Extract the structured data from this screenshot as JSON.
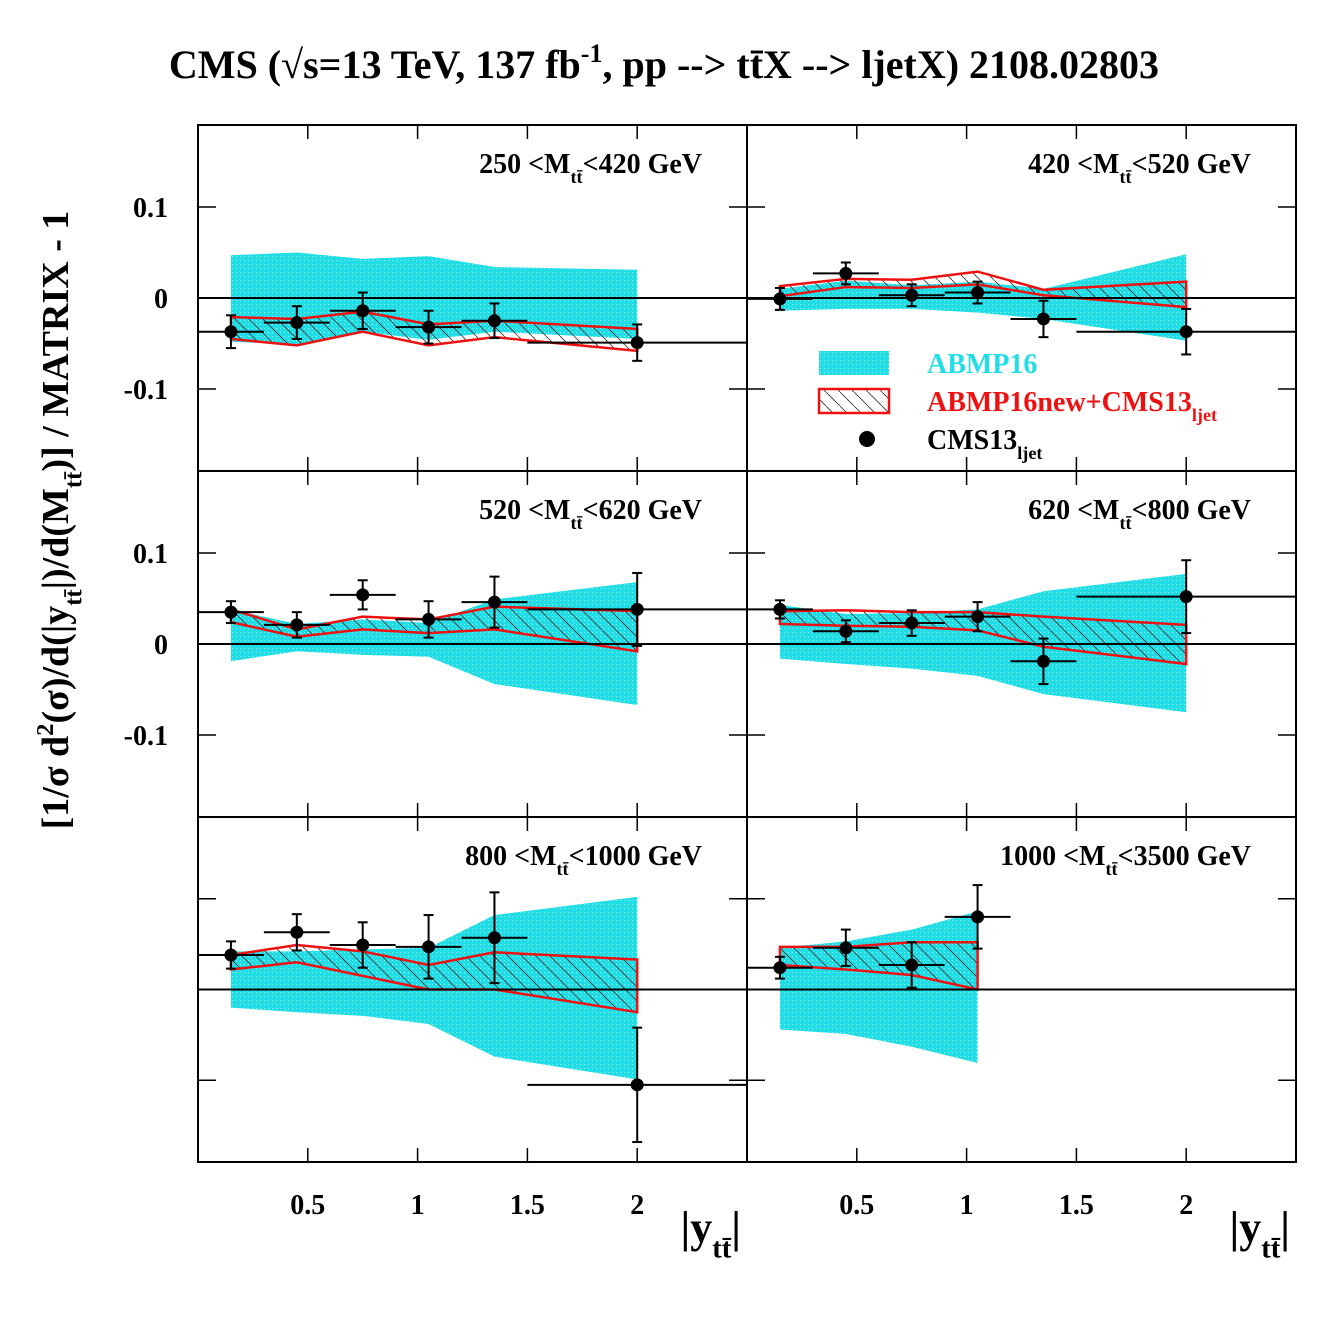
{
  "title": [
    "CMS (√s=13 TeV, 137 fb",
    {
      "sup": "-1"
    },
    ", pp --> tt̄X --> ljetX) 2108.02803"
  ],
  "y_label": [
    "[1/σ d",
    {
      "sup": "2"
    },
    "(σ)/d(|y",
    {
      "sub": "tt̄"
    },
    "|)/d(M",
    {
      "sub": "tt̄"
    },
    ")] / MATRIX - 1"
  ],
  "chart_data": [
    {
      "type": "band-points",
      "label": [
        "250 <M",
        {
          "sub": "tt̄"
        },
        "<420 GeV"
      ],
      "xlim": [
        0,
        2.5
      ],
      "ylim": [
        -0.19,
        0.19
      ],
      "xticks": [
        0.5,
        1,
        1.5,
        2
      ],
      "yticks": [
        -0.1,
        0,
        0.1
      ],
      "show_xtick_labels": false,
      "show_ytick_labels": true,
      "reference_line": 0,
      "x": [
        0.15,
        0.45,
        0.75,
        1.05,
        1.35,
        2.0
      ],
      "xerr": [
        0.15,
        0.15,
        0.15,
        0.15,
        0.15,
        0.5
      ],
      "values": [
        -0.037,
        -0.027,
        -0.014,
        -0.032,
        -0.025,
        -0.049
      ],
      "yerr": [
        0.018,
        0.018,
        0.02,
        0.018,
        0.019,
        0.02
      ],
      "bands": [
        {
          "upper": [
            0.047,
            0.05,
            0.043,
            0.046,
            0.034,
            0.031
          ],
          "lower": [
            -0.048,
            -0.051,
            -0.037,
            -0.046,
            -0.037,
            -0.045
          ]
        },
        {
          "upper": [
            -0.021,
            -0.023,
            -0.015,
            -0.029,
            -0.025,
            -0.034
          ],
          "lower": [
            -0.045,
            -0.052,
            -0.037,
            -0.052,
            -0.043,
            -0.058
          ]
        }
      ]
    },
    {
      "type": "band-points",
      "label": [
        "420 <M",
        {
          "sub": "tt̄"
        },
        "<520 GeV"
      ],
      "xlim": [
        0,
        2.5
      ],
      "ylim": [
        -0.19,
        0.19
      ],
      "xticks": [
        0.5,
        1,
        1.5,
        2
      ],
      "yticks": [
        -0.1,
        0,
        0.1
      ],
      "show_xtick_labels": false,
      "show_ytick_labels": false,
      "reference_line": 0,
      "x": [
        0.15,
        0.45,
        0.75,
        1.05,
        1.35,
        2.0
      ],
      "xerr": [
        0.15,
        0.15,
        0.15,
        0.15,
        0.15,
        0.5
      ],
      "values": [
        -0.001,
        0.027,
        0.003,
        0.006,
        -0.023,
        -0.037
      ],
      "yerr": [
        0.012,
        0.012,
        0.012,
        0.012,
        0.02,
        0.025
      ],
      "bands": [
        {
          "upper": [
            0.01,
            0.019,
            0.014,
            0.018,
            0.01,
            0.048
          ],
          "lower": [
            -0.014,
            -0.012,
            -0.012,
            -0.016,
            -0.023,
            -0.047
          ]
        },
        {
          "upper": [
            0.013,
            0.021,
            0.02,
            0.029,
            0.009,
            0.018
          ],
          "lower": [
            0.002,
            0.012,
            0.011,
            0.015,
            0.003,
            -0.01
          ]
        }
      ],
      "legend": {
        "entries": [
          {
            "name": [
              "ABMP16"
            ],
            "color": "#22dde6"
          },
          {
            "name": [
              "ABMP16new+CMS13",
              {
                "sub": "ljet"
              }
            ],
            "color": "#ee1111"
          },
          {
            "name": [
              "CMS13",
              {
                "sub": "ljet"
              }
            ],
            "color": "#000000"
          }
        ]
      }
    },
    {
      "type": "band-points",
      "label": [
        "520 <M",
        {
          "sub": "tt̄"
        },
        "<620 GeV"
      ],
      "xlim": [
        0,
        2.5
      ],
      "ylim": [
        -0.19,
        0.19
      ],
      "xticks": [
        0.5,
        1,
        1.5,
        2
      ],
      "yticks": [
        -0.1,
        0,
        0.1
      ],
      "show_xtick_labels": false,
      "show_ytick_labels": true,
      "reference_line": 0,
      "x": [
        0.15,
        0.45,
        0.75,
        1.05,
        1.35,
        2.0
      ],
      "xerr": [
        0.15,
        0.15,
        0.15,
        0.15,
        0.15,
        0.5
      ],
      "values": [
        0.035,
        0.021,
        0.054,
        0.027,
        0.046,
        0.038
      ],
      "yerr": [
        0.012,
        0.014,
        0.016,
        0.02,
        0.028,
        0.04
      ],
      "bands": [
        {
          "upper": [
            0.038,
            0.022,
            0.027,
            0.023,
            0.049,
            0.068
          ],
          "lower": [
            -0.019,
            -0.008,
            -0.012,
            -0.014,
            -0.044,
            -0.067
          ]
        },
        {
          "upper": [
            0.038,
            0.016,
            0.03,
            0.027,
            0.041,
            0.036
          ],
          "lower": [
            0.024,
            0.008,
            0.016,
            0.012,
            0.016,
            -0.008
          ]
        }
      ]
    },
    {
      "type": "band-points",
      "label": [
        "620 <M",
        {
          "sub": "tt̄"
        },
        "<800 GeV"
      ],
      "xlim": [
        0,
        2.5
      ],
      "ylim": [
        -0.19,
        0.19
      ],
      "xticks": [
        0.5,
        1,
        1.5,
        2
      ],
      "yticks": [
        -0.1,
        0,
        0.1
      ],
      "show_xtick_labels": false,
      "show_ytick_labels": false,
      "reference_line": 0,
      "x": [
        0.15,
        0.45,
        0.75,
        1.05,
        1.35,
        2.0
      ],
      "xerr": [
        0.15,
        0.15,
        0.15,
        0.15,
        0.15,
        0.5
      ],
      "values": [
        0.038,
        0.014,
        0.023,
        0.03,
        -0.019,
        0.052
      ],
      "yerr": [
        0.01,
        0.012,
        0.014,
        0.016,
        0.025,
        0.04
      ],
      "bands": [
        {
          "upper": [
            0.043,
            0.033,
            0.034,
            0.038,
            0.058,
            0.077
          ],
          "lower": [
            -0.016,
            -0.022,
            -0.027,
            -0.035,
            -0.055,
            -0.075
          ]
        },
        {
          "upper": [
            0.036,
            0.037,
            0.035,
            0.035,
            0.03,
            0.021
          ],
          "lower": [
            0.022,
            0.02,
            0.019,
            0.015,
            -0.003,
            -0.022
          ]
        }
      ]
    },
    {
      "type": "band-points",
      "label": [
        "800 <M",
        {
          "sub": "tt̄"
        },
        "<1000 GeV"
      ],
      "xlim": [
        0,
        2.5
      ],
      "ylim": [
        -0.19,
        0.19
      ],
      "xticks": [
        0.5,
        1,
        1.5,
        2
      ],
      "yticks": [
        -0.1,
        0,
        0.1
      ],
      "show_xtick_labels": true,
      "show_ytick_labels": false,
      "reference_line": 0,
      "x_label": [
        "|y",
        {
          "sub": "tt̄"
        },
        "|"
      ],
      "x": [
        0.15,
        0.45,
        0.75,
        1.05,
        1.35,
        2.0
      ],
      "xerr": [
        0.15,
        0.15,
        0.15,
        0.15,
        0.15,
        0.5
      ],
      "values": [
        0.038,
        0.063,
        0.049,
        0.047,
        0.057,
        -0.105
      ],
      "yerr": [
        0.015,
        0.02,
        0.025,
        0.035,
        0.05,
        0.063
      ],
      "bands": [
        {
          "upper": [
            0.042,
            0.042,
            0.044,
            0.046,
            0.082,
            0.102
          ],
          "lower": [
            -0.02,
            -0.025,
            -0.029,
            -0.038,
            -0.074,
            -0.099
          ]
        },
        {
          "upper": [
            0.038,
            0.049,
            0.042,
            0.027,
            0.041,
            0.033
          ],
          "lower": [
            0.022,
            0.03,
            0.015,
            0.0,
            0.0,
            -0.025
          ]
        }
      ]
    },
    {
      "type": "band-points",
      "label": [
        "1000 <M",
        {
          "sub": "tt̄"
        },
        "<3500 GeV"
      ],
      "xlim": [
        0,
        2.5
      ],
      "ylim": [
        -0.19,
        0.19
      ],
      "xticks": [
        0.5,
        1,
        1.5,
        2
      ],
      "yticks": [
        -0.1,
        0,
        0.1
      ],
      "show_xtick_labels": true,
      "show_ytick_labels": false,
      "reference_line": 0,
      "x_label": [
        "|y",
        {
          "sub": "tt̄"
        },
        "|"
      ],
      "x": [
        0.15,
        0.45,
        0.75,
        1.05
      ],
      "xerr": [
        0.15,
        0.15,
        0.15,
        0.15
      ],
      "values": [
        0.024,
        0.046,
        0.027,
        0.08
      ],
      "yerr": [
        0.012,
        0.02,
        0.025,
        0.035
      ],
      "bands": [
        {
          "upper": [
            0.046,
            0.053,
            0.066,
            0.086
          ],
          "lower": [
            -0.044,
            -0.049,
            -0.063,
            -0.081
          ]
        },
        {
          "upper": [
            0.047,
            0.047,
            0.052,
            0.052
          ],
          "lower": [
            0.027,
            0.022,
            0.016,
            0.0
          ]
        }
      ]
    }
  ]
}
